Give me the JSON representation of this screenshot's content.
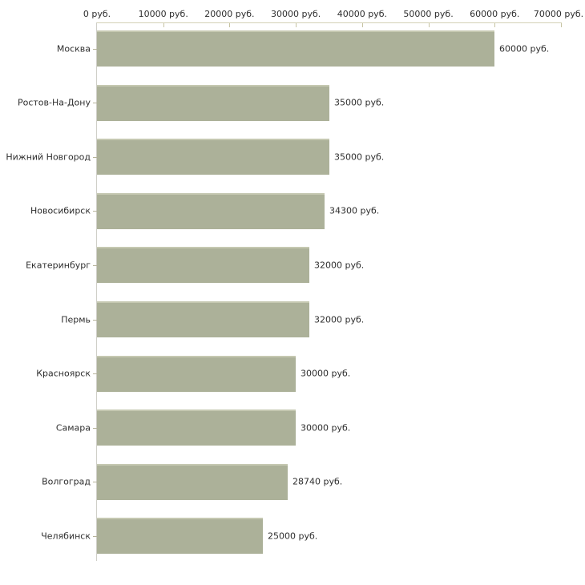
{
  "chart_data": {
    "type": "bar",
    "orientation": "horizontal",
    "categories": [
      "Москва",
      "Ростов-На-Дону",
      "Нижний Новгород",
      "Новосибирск",
      "Екатеринбург",
      "Пермь",
      "Красноярск",
      "Самара",
      "Волгоград",
      "Челябинск"
    ],
    "values": [
      60000,
      35000,
      35000,
      34300,
      32000,
      32000,
      30000,
      30000,
      28740,
      25000
    ],
    "value_labels": [
      "60000 руб.",
      "35000 руб.",
      "35000 руб.",
      "34300 руб.",
      "32000 руб.",
      "32000 руб.",
      "30000 руб.",
      "30000 руб.",
      "28740 руб.",
      "25000 руб."
    ],
    "x_tick_labels": [
      "0 руб.",
      "10000 руб.",
      "20000 руб.",
      "30000 руб.",
      "40000 руб.",
      "50000 руб.",
      "60000 руб.",
      "70000 руб."
    ],
    "x_tick_values": [
      0,
      10000,
      20000,
      30000,
      40000,
      50000,
      60000,
      70000
    ],
    "xlim": [
      0,
      70000
    ],
    "unit": "руб.",
    "grid": "off",
    "legend": "none",
    "colors": {
      "bar": "#acb199",
      "bar_top_highlight": "#c5c8b1",
      "x_axis_line": "#d4d1b6",
      "y_axis_line": "#cfcfc8",
      "tick_mark": "#c6c3a2",
      "category_tick": "#b5b29a",
      "text": "#2e2e2e",
      "background": "#ffffff"
    }
  }
}
